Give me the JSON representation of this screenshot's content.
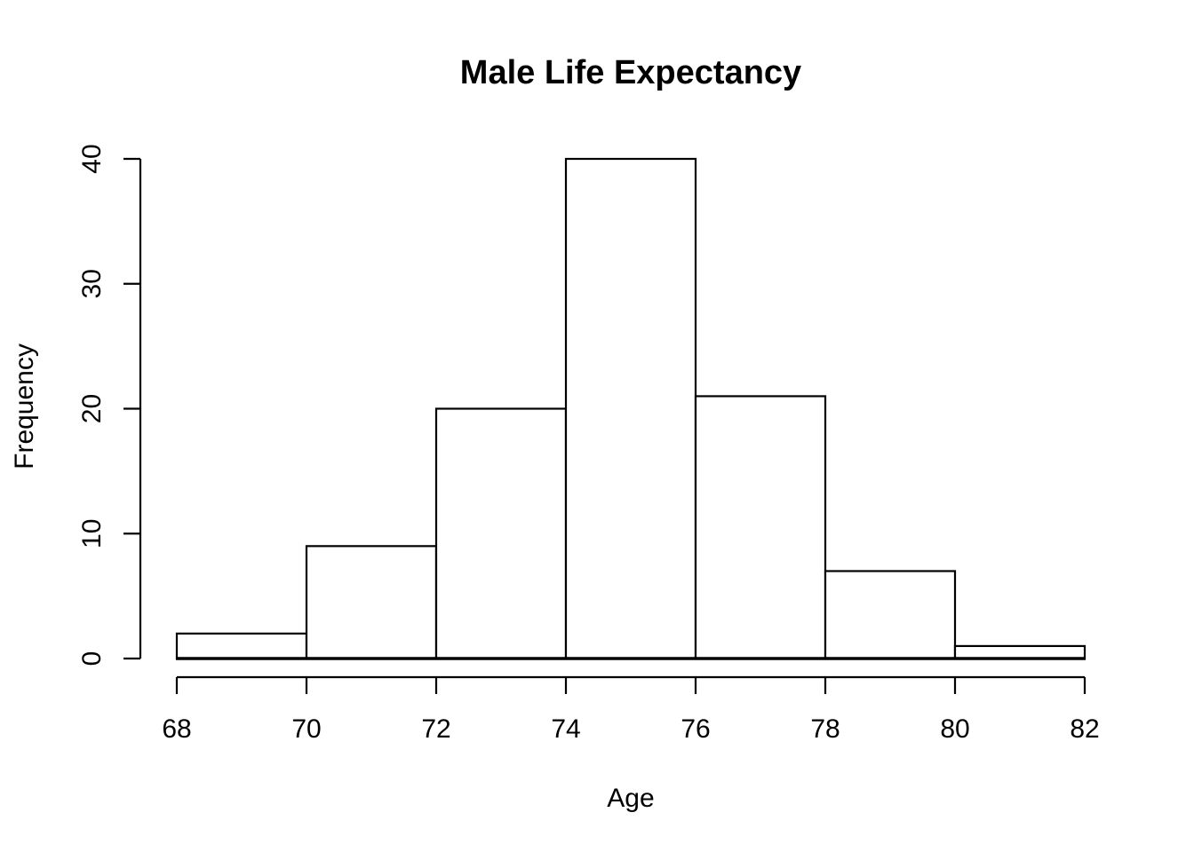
{
  "chart_data": {
    "type": "bar",
    "subtype": "histogram",
    "title": "Male Life Expectancy",
    "xlabel": "Age",
    "ylabel": "Frequency",
    "bin_edges": [
      68,
      70,
      72,
      74,
      76,
      78,
      80,
      82
    ],
    "frequencies": [
      2,
      9,
      20,
      40,
      21,
      7,
      1
    ],
    "x_ticks": [
      68,
      70,
      72,
      74,
      76,
      78,
      80,
      82
    ],
    "y_ticks": [
      0,
      10,
      20,
      30,
      40
    ],
    "xlim": [
      68,
      82
    ],
    "ylim": [
      0,
      40
    ],
    "grid": "off",
    "legend": "none",
    "colors": {
      "background": "#ffffff",
      "bar_fill": "#ffffff",
      "bar_stroke": "#000000",
      "axis": "#000000",
      "text": "#000000"
    }
  }
}
